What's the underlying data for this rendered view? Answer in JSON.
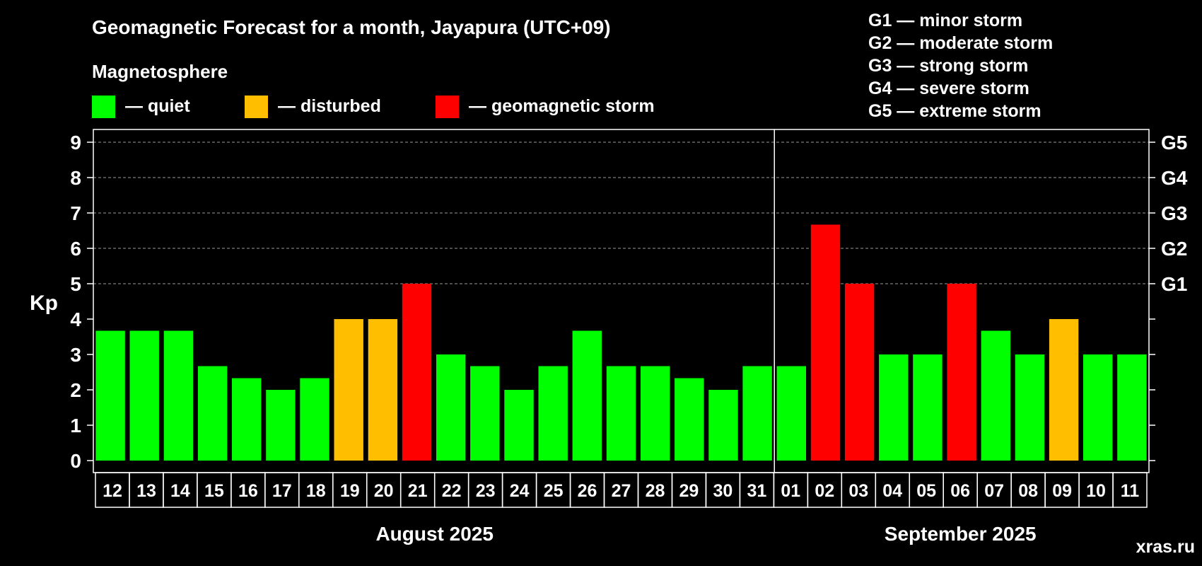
{
  "chart_data": {
    "type": "bar",
    "title": "Geomagnetic Forecast for a month, Jayapura (UTC+09)",
    "ylabel": "Kp",
    "ylim": [
      0,
      9
    ],
    "yticks": [
      "0",
      "1",
      "2",
      "3",
      "4",
      "5",
      "6",
      "7",
      "8",
      "9"
    ],
    "right_axis_labels": [
      {
        "kp": 5,
        "label": "G1"
      },
      {
        "kp": 6,
        "label": "G2"
      },
      {
        "kp": 7,
        "label": "G3"
      },
      {
        "kp": 8,
        "label": "G4"
      },
      {
        "kp": 9,
        "label": "G5"
      }
    ],
    "legend": {
      "heading": "Magnetosphere",
      "items": [
        {
          "label": "— quiet",
          "color": "#00ff00"
        },
        {
          "label": "— disturbed",
          "color": "#ffbf00"
        },
        {
          "label": "— geomagnetic storm",
          "color": "#ff0000"
        }
      ]
    },
    "storm_scale": [
      "G1 — minor storm",
      "G2 — moderate storm",
      "G3 — strong storm",
      "G4 — severe storm",
      "G5 — extreme storm"
    ],
    "months": [
      {
        "label": "August 2025",
        "count": 20
      },
      {
        "label": "September 2025",
        "count": 11
      }
    ],
    "categories": [
      "12",
      "13",
      "14",
      "15",
      "16",
      "17",
      "18",
      "19",
      "20",
      "21",
      "22",
      "23",
      "24",
      "25",
      "26",
      "27",
      "28",
      "29",
      "30",
      "31",
      "01",
      "02",
      "03",
      "04",
      "05",
      "06",
      "07",
      "08",
      "09",
      "10",
      "11"
    ],
    "values": [
      3.67,
      3.67,
      3.67,
      2.67,
      2.33,
      2.0,
      2.33,
      4.0,
      4.0,
      5.0,
      3.0,
      2.67,
      2.0,
      2.67,
      3.67,
      2.67,
      2.67,
      2.33,
      2.0,
      2.67,
      2.67,
      6.67,
      5.0,
      3.0,
      3.0,
      5.0,
      3.67,
      3.0,
      4.0,
      3.0,
      3.0
    ],
    "status": [
      "quiet",
      "quiet",
      "quiet",
      "quiet",
      "quiet",
      "quiet",
      "quiet",
      "disturbed",
      "disturbed",
      "storm",
      "quiet",
      "quiet",
      "quiet",
      "quiet",
      "quiet",
      "quiet",
      "quiet",
      "quiet",
      "quiet",
      "quiet",
      "quiet",
      "storm",
      "storm",
      "quiet",
      "quiet",
      "storm",
      "quiet",
      "quiet",
      "disturbed",
      "quiet",
      "quiet"
    ]
  },
  "colors": {
    "background": "#000000",
    "foreground": "#ffffff",
    "grid": "#9a9a9a",
    "quiet": "#00ff00",
    "disturbed": "#ffbf00",
    "storm": "#ff0000",
    "watermark": "#6e6e6e"
  },
  "watermark": "xras.ru"
}
